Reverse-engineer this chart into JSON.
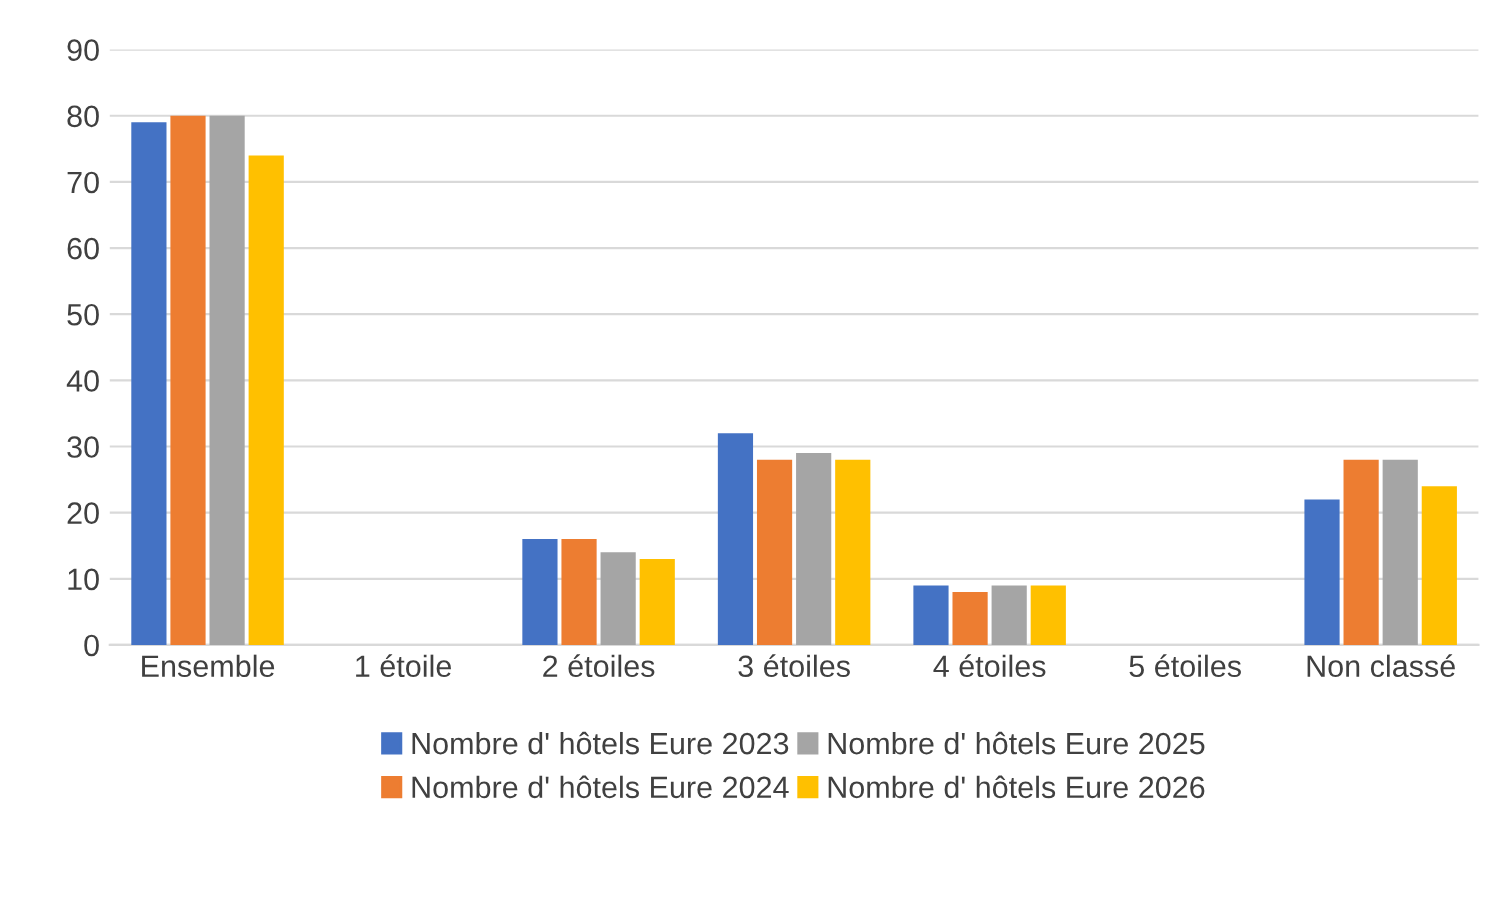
{
  "chart_data": {
    "type": "bar",
    "categories": [
      "Ensemble",
      "1 étoile",
      "2 étoiles",
      "3 étoiles",
      "4 étoiles",
      "5 étoiles",
      "Non classé"
    ],
    "series": [
      {
        "name": "Nombre d' hôtels Eure 2023",
        "color": "#4472c4",
        "values": [
          79,
          0,
          16,
          32,
          9,
          0,
          22
        ]
      },
      {
        "name": "Nombre d' hôtels Eure 2024",
        "color": "#ed7d31",
        "values": [
          80,
          0,
          16,
          28,
          8,
          0,
          28
        ]
      },
      {
        "name": "Nombre d' hôtels Eure 2025",
        "color": "#a5a5a5",
        "values": [
          80,
          0,
          14,
          29,
          9,
          0,
          28
        ]
      },
      {
        "name": "Nombre d' hôtels Eure 2026",
        "color": "#ffc000",
        "values": [
          74,
          0,
          13,
          28,
          9,
          0,
          24
        ]
      }
    ],
    "ylim": [
      0,
      90
    ],
    "yticks": [
      0,
      10,
      20,
      30,
      40,
      50,
      60,
      70,
      80,
      90
    ],
    "grid": "y",
    "legend": "bottom"
  }
}
